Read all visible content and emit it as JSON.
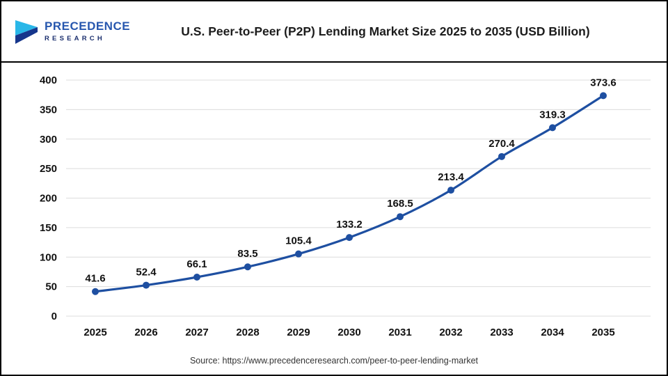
{
  "header": {
    "logo": {
      "line1": "PRECEDENCE",
      "line2": "RESEARCH",
      "mark_light_color": "#29b7e8",
      "mark_dark_color": "#16368c"
    },
    "title": "U.S. Peer-to-Peer (P2P) Lending Market Size 2025 to 2035 (USD Billion)"
  },
  "chart_data": {
    "type": "line",
    "title": "U.S. Peer-to-Peer (P2P) Lending Market Size 2025 to 2035 (USD Billion)",
    "categories": [
      "2025",
      "2026",
      "2027",
      "2028",
      "2029",
      "2030",
      "2031",
      "2032",
      "2033",
      "2034",
      "2035"
    ],
    "values": [
      41.6,
      52.4,
      66.1,
      83.5,
      105.4,
      133.2,
      168.5,
      213.4,
      270.4,
      319.3,
      373.6
    ],
    "xlabel": "",
    "ylabel": "",
    "ylim": [
      0,
      400
    ],
    "ytick_step": 50,
    "ytick_labels": [
      "0",
      "50",
      "100",
      "150",
      "200",
      "250",
      "300",
      "350",
      "400"
    ],
    "grid": true,
    "legend": "none",
    "line_color": "#1e4fa1",
    "grid_color": "#dcdcdc",
    "label_color": "#111111"
  },
  "footer": {
    "source": "Source: https://www.precedenceresearch.com/peer-to-peer-lending-market"
  }
}
